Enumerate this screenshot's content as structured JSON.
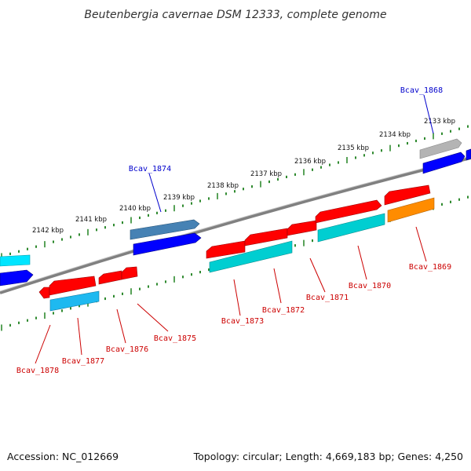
{
  "title": "Beutenbergia cavernae DSM 12333, complete genome",
  "accession": "Accession: NC_012669",
  "topology": "Topology: circular; Length: 4,669,183 bp; Genes: 4,250",
  "colors": {
    "backbone": "#808080",
    "tick": "#2f8a2f",
    "label_forward": "#0000cc",
    "label_reverse": "#cc0000",
    "gene_red": "#ff0000",
    "gene_blue": "#0000ff",
    "gene_steel": "#4682b4",
    "gene_cyan": "#00ced1",
    "gene_lightcyan": "#00e5ff",
    "gene_skyblue": "#1eb9f0",
    "gene_gray": "#b4b4b4",
    "gene_orange": "#ff8c00"
  },
  "scale_labels": [
    "2133 kbp",
    "2134 kbp",
    "2135 kbp",
    "2136 kbp",
    "2137 kbp",
    "2138 kbp",
    "2139 kbp",
    "2140 kbp",
    "2141 kbp",
    "2142 kbp"
  ],
  "gene_labels": [
    {
      "name": "Bcav_1868",
      "strand": "forward"
    },
    {
      "name": "Bcav_1874",
      "strand": "forward"
    },
    {
      "name": "Bcav_1869",
      "strand": "reverse"
    },
    {
      "name": "Bcav_1870",
      "strand": "reverse"
    },
    {
      "name": "Bcav_1871",
      "strand": "reverse"
    },
    {
      "name": "Bcav_1872",
      "strand": "reverse"
    },
    {
      "name": "Bcav_1873",
      "strand": "reverse"
    },
    {
      "name": "Bcav_1875",
      "strand": "reverse"
    },
    {
      "name": "Bcav_1876",
      "strand": "reverse"
    },
    {
      "name": "Bcav_1877",
      "strand": "reverse"
    },
    {
      "name": "Bcav_1878",
      "strand": "reverse"
    }
  ]
}
